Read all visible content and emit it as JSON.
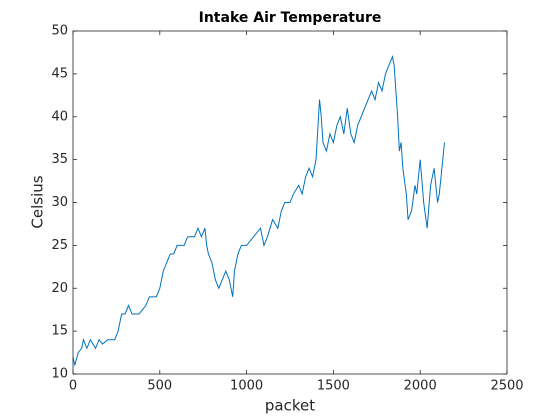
{
  "chart_data": {
    "type": "line",
    "title": "Intake Air Temperature",
    "x_label": "packet",
    "y_label": "Celsius",
    "color": "#0072bd",
    "x": [
      0,
      10,
      30,
      50,
      60,
      80,
      100,
      130,
      150,
      170,
      200,
      240,
      260,
      280,
      300,
      320,
      340,
      380,
      420,
      440,
      480,
      500,
      520,
      540,
      560,
      580,
      600,
      640,
      660,
      700,
      720,
      740,
      760,
      770,
      780,
      800,
      810,
      820,
      840,
      860,
      880,
      900,
      920,
      930,
      950,
      970,
      1000,
      1040,
      1080,
      1100,
      1120,
      1150,
      1180,
      1200,
      1220,
      1250,
      1270,
      1300,
      1320,
      1340,
      1360,
      1380,
      1400,
      1420,
      1430,
      1440,
      1460,
      1480,
      1500,
      1520,
      1540,
      1560,
      1580,
      1600,
      1620,
      1640,
      1660,
      1680,
      1700,
      1720,
      1740,
      1760,
      1780,
      1800,
      1820,
      1840,
      1850,
      1870,
      1880,
      1890,
      1900,
      1920,
      1930,
      1950,
      1970,
      1980,
      2000,
      2020,
      2040,
      2060,
      2080,
      2100,
      2110,
      2130,
      2140
    ],
    "values": [
      12,
      11,
      12.5,
      13,
      14,
      13,
      14,
      13,
      14,
      13.5,
      14,
      14,
      15,
      17,
      17,
      18,
      17,
      17,
      18,
      19,
      19,
      20,
      22,
      23,
      24,
      24,
      25,
      25,
      26,
      26,
      27,
      26,
      27,
      25,
      24,
      23,
      22,
      21,
      20,
      21,
      22,
      21,
      19,
      22,
      24,
      25,
      25,
      26,
      27,
      25,
      26,
      28,
      27,
      29,
      30,
      30,
      31,
      32,
      31,
      33,
      34,
      33,
      35,
      42,
      40,
      37,
      36,
      38,
      37,
      39,
      40,
      38,
      41,
      38,
      37,
      39,
      40,
      41,
      42,
      43,
      42,
      44,
      43,
      45,
      46,
      47,
      46,
      40,
      36,
      37,
      34,
      31,
      28,
      29,
      32,
      31,
      35,
      30,
      27,
      32,
      34,
      30,
      31,
      35,
      37
    ],
    "xlim": [
      0,
      2500
    ],
    "xticks": [
      0,
      500,
      1000,
      1500,
      2000,
      2500
    ],
    "ylim": [
      10,
      50
    ],
    "yticks": [
      10,
      15,
      20,
      25,
      30,
      35,
      40,
      45,
      50
    ]
  }
}
